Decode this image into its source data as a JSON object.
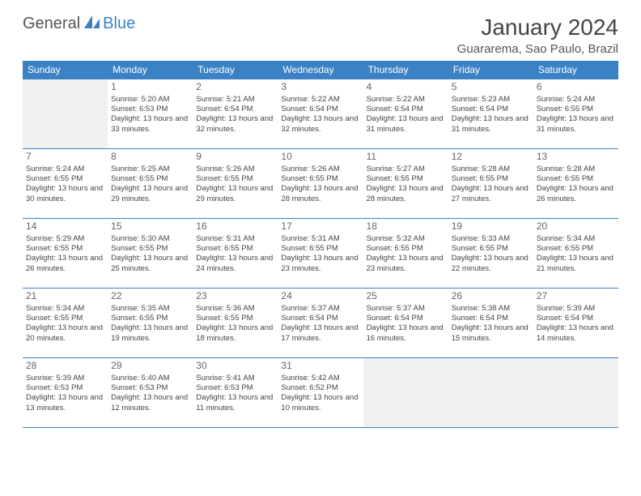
{
  "brand": {
    "text1": "General",
    "text2": "Blue",
    "icon_color": "#3b82c4"
  },
  "title": "January 2024",
  "location": "Guararema, Sao Paulo, Brazil",
  "theme": {
    "header_bg": "#3b82c4",
    "header_text": "#ffffff",
    "border": "#3b82c4",
    "empty_bg": "#f0f0f0"
  },
  "day_headers": [
    "Sunday",
    "Monday",
    "Tuesday",
    "Wednesday",
    "Thursday",
    "Friday",
    "Saturday"
  ],
  "weeks": [
    [
      null,
      {
        "d": "1",
        "sr": "5:20 AM",
        "ss": "6:53 PM",
        "dl": "13 hours and 33 minutes."
      },
      {
        "d": "2",
        "sr": "5:21 AM",
        "ss": "6:54 PM",
        "dl": "13 hours and 32 minutes."
      },
      {
        "d": "3",
        "sr": "5:22 AM",
        "ss": "6:54 PM",
        "dl": "13 hours and 32 minutes."
      },
      {
        "d": "4",
        "sr": "5:22 AM",
        "ss": "6:54 PM",
        "dl": "13 hours and 31 minutes."
      },
      {
        "d": "5",
        "sr": "5:23 AM",
        "ss": "6:54 PM",
        "dl": "13 hours and 31 minutes."
      },
      {
        "d": "6",
        "sr": "5:24 AM",
        "ss": "6:55 PM",
        "dl": "13 hours and 31 minutes."
      }
    ],
    [
      {
        "d": "7",
        "sr": "5:24 AM",
        "ss": "6:55 PM",
        "dl": "13 hours and 30 minutes."
      },
      {
        "d": "8",
        "sr": "5:25 AM",
        "ss": "6:55 PM",
        "dl": "13 hours and 29 minutes."
      },
      {
        "d": "9",
        "sr": "5:26 AM",
        "ss": "6:55 PM",
        "dl": "13 hours and 29 minutes."
      },
      {
        "d": "10",
        "sr": "5:26 AM",
        "ss": "6:55 PM",
        "dl": "13 hours and 28 minutes."
      },
      {
        "d": "11",
        "sr": "5:27 AM",
        "ss": "6:55 PM",
        "dl": "13 hours and 28 minutes."
      },
      {
        "d": "12",
        "sr": "5:28 AM",
        "ss": "6:55 PM",
        "dl": "13 hours and 27 minutes."
      },
      {
        "d": "13",
        "sr": "5:28 AM",
        "ss": "6:55 PM",
        "dl": "13 hours and 26 minutes."
      }
    ],
    [
      {
        "d": "14",
        "sr": "5:29 AM",
        "ss": "6:55 PM",
        "dl": "13 hours and 26 minutes."
      },
      {
        "d": "15",
        "sr": "5:30 AM",
        "ss": "6:55 PM",
        "dl": "13 hours and 25 minutes."
      },
      {
        "d": "16",
        "sr": "5:31 AM",
        "ss": "6:55 PM",
        "dl": "13 hours and 24 minutes."
      },
      {
        "d": "17",
        "sr": "5:31 AM",
        "ss": "6:55 PM",
        "dl": "13 hours and 23 minutes."
      },
      {
        "d": "18",
        "sr": "5:32 AM",
        "ss": "6:55 PM",
        "dl": "13 hours and 23 minutes."
      },
      {
        "d": "19",
        "sr": "5:33 AM",
        "ss": "6:55 PM",
        "dl": "13 hours and 22 minutes."
      },
      {
        "d": "20",
        "sr": "5:34 AM",
        "ss": "6:55 PM",
        "dl": "13 hours and 21 minutes."
      }
    ],
    [
      {
        "d": "21",
        "sr": "5:34 AM",
        "ss": "6:55 PM",
        "dl": "13 hours and 20 minutes."
      },
      {
        "d": "22",
        "sr": "5:35 AM",
        "ss": "6:55 PM",
        "dl": "13 hours and 19 minutes."
      },
      {
        "d": "23",
        "sr": "5:36 AM",
        "ss": "6:55 PM",
        "dl": "13 hours and 18 minutes."
      },
      {
        "d": "24",
        "sr": "5:37 AM",
        "ss": "6:54 PM",
        "dl": "13 hours and 17 minutes."
      },
      {
        "d": "25",
        "sr": "5:37 AM",
        "ss": "6:54 PM",
        "dl": "13 hours and 16 minutes."
      },
      {
        "d": "26",
        "sr": "5:38 AM",
        "ss": "6:54 PM",
        "dl": "13 hours and 15 minutes."
      },
      {
        "d": "27",
        "sr": "5:39 AM",
        "ss": "6:54 PM",
        "dl": "13 hours and 14 minutes."
      }
    ],
    [
      {
        "d": "28",
        "sr": "5:39 AM",
        "ss": "6:53 PM",
        "dl": "13 hours and 13 minutes."
      },
      {
        "d": "29",
        "sr": "5:40 AM",
        "ss": "6:53 PM",
        "dl": "13 hours and 12 minutes."
      },
      {
        "d": "30",
        "sr": "5:41 AM",
        "ss": "6:53 PM",
        "dl": "13 hours and 11 minutes."
      },
      {
        "d": "31",
        "sr": "5:42 AM",
        "ss": "6:52 PM",
        "dl": "13 hours and 10 minutes."
      },
      null,
      null,
      null
    ]
  ],
  "labels": {
    "sunrise": "Sunrise:",
    "sunset": "Sunset:",
    "daylight": "Daylight:"
  }
}
